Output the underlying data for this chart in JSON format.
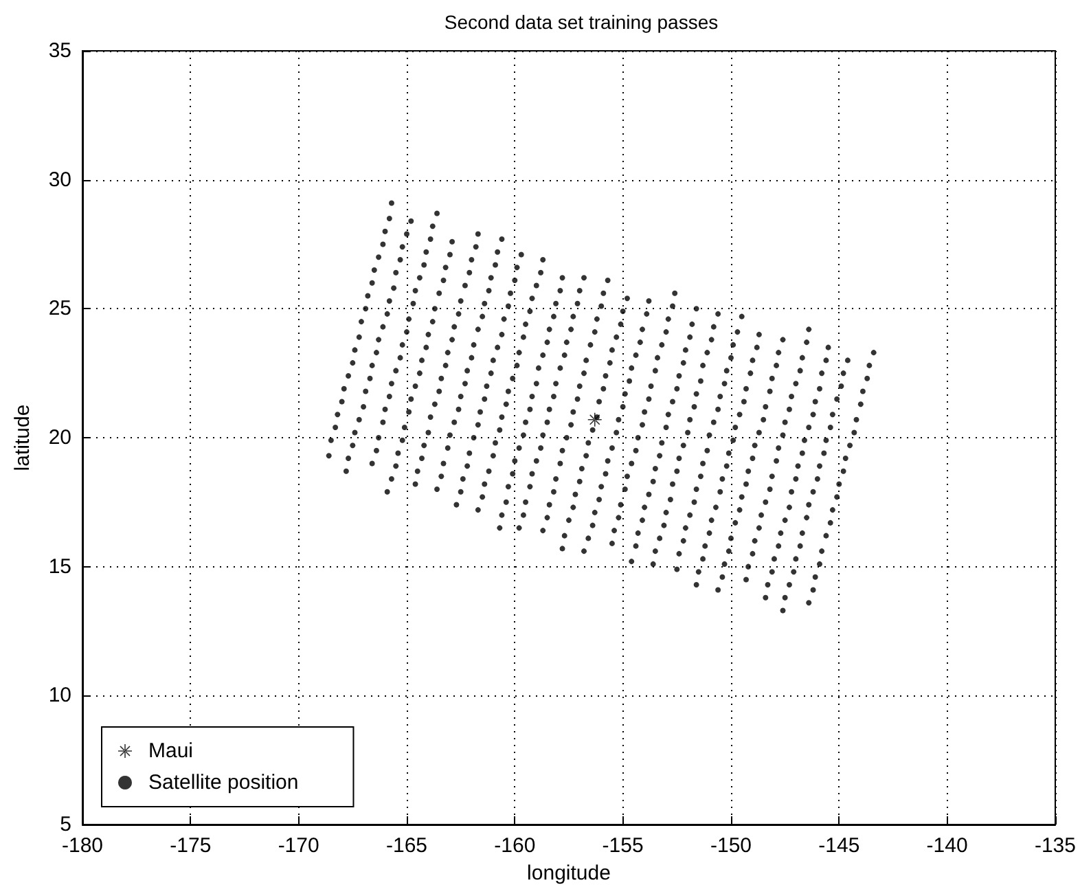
{
  "chart_data": {
    "type": "scatter",
    "title": "Second data set training passes",
    "xlabel": "longitude",
    "ylabel": "latitude",
    "xlim": [
      -180,
      -135
    ],
    "xticks": [
      -180,
      -175,
      -170,
      -165,
      -160,
      -155,
      -150,
      -145,
      -140,
      -135
    ],
    "ylim": [
      5,
      35
    ],
    "yticks": [
      5,
      10,
      15,
      20,
      25,
      30,
      35
    ],
    "grid": true,
    "legend": "bottom left",
    "series": [
      {
        "name": "Maui",
        "color": "#000000",
        "marker": "star",
        "x": [
          -156.3
        ],
        "values": [
          20.7
        ]
      },
      {
        "name": "Satellite position",
        "color": "#000000",
        "marker": "circle",
        "x": [
          -165.7,
          -165.8,
          -166.0,
          -166.1,
          -166.3,
          -166.5,
          -166.6,
          -166.8,
          -166.9,
          -167.1,
          -167.2,
          -167.4,
          -167.5,
          -167.7,
          -167.9,
          -168.0,
          -168.2,
          -168.3,
          -168.5,
          -168.6,
          -164.8,
          -165.0,
          -165.2,
          -165.3,
          -165.5,
          -165.6,
          -165.8,
          -165.9,
          -166.1,
          -166.3,
          -166.4,
          -166.6,
          -166.7,
          -166.9,
          -167.0,
          -167.2,
          -167.4,
          -167.5,
          -167.7,
          -167.8,
          -163.6,
          -163.8,
          -163.9,
          -164.1,
          -164.2,
          -164.4,
          -164.6,
          -164.7,
          -164.9,
          -165.0,
          -165.2,
          -165.3,
          -165.5,
          -165.7,
          -165.8,
          -166.0,
          -166.1,
          -166.3,
          -166.4,
          -166.6,
          -162.9,
          -163.0,
          -163.2,
          -163.3,
          -163.5,
          -163.7,
          -163.8,
          -164.0,
          -164.1,
          -164.3,
          -164.4,
          -164.6,
          -164.8,
          -164.9,
          -165.1,
          -165.2,
          -165.4,
          -165.5,
          -165.7,
          -165.9,
          -161.7,
          -161.8,
          -162.0,
          -162.1,
          -162.3,
          -162.5,
          -162.6,
          -162.8,
          -162.9,
          -163.1,
          -163.2,
          -163.4,
          -163.5,
          -163.7,
          -163.9,
          -164.0,
          -164.2,
          -164.3,
          -164.5,
          -164.6,
          -160.6,
          -160.8,
          -160.9,
          -161.1,
          -161.2,
          -161.4,
          -161.5,
          -161.7,
          -161.9,
          -162.0,
          -162.2,
          -162.3,
          -162.5,
          -162.6,
          -162.8,
          -163.0,
          -163.1,
          -163.3,
          -163.4,
          -163.6,
          -159.7,
          -159.9,
          -160.0,
          -160.2,
          -160.3,
          -160.5,
          -160.6,
          -160.8,
          -161.0,
          -161.1,
          -161.3,
          -161.4,
          -161.6,
          -161.7,
          -161.9,
          -162.1,
          -162.2,
          -162.4,
          -162.5,
          -162.7,
          -158.7,
          -158.8,
          -159.0,
          -159.2,
          -159.3,
          -159.5,
          -159.6,
          -159.8,
          -159.9,
          -160.1,
          -160.3,
          -160.4,
          -160.6,
          -160.7,
          -160.9,
          -161.0,
          -161.2,
          -161.4,
          -161.5,
          -161.7,
          -157.8,
          -157.9,
          -158.1,
          -158.2,
          -158.4,
          -158.5,
          -158.7,
          -158.9,
          -159.0,
          -159.2,
          -159.3,
          -159.5,
          -159.6,
          -159.8,
          -160.0,
          -160.1,
          -160.3,
          -160.4,
          -160.6,
          -160.7,
          -156.8,
          -157.0,
          -157.1,
          -157.3,
          -157.4,
          -157.6,
          -157.7,
          -157.9,
          -158.1,
          -158.2,
          -158.4,
          -158.5,
          -158.7,
          -158.8,
          -159.0,
          -159.2,
          -159.3,
          -159.5,
          -159.6,
          -159.8,
          -155.7,
          -155.9,
          -156.0,
          -156.2,
          -156.3,
          -156.5,
          -156.7,
          -156.8,
          -157.0,
          -157.1,
          -157.3,
          -157.4,
          -157.6,
          -157.8,
          -157.9,
          -158.1,
          -158.2,
          -158.4,
          -158.5,
          -158.7,
          -154.8,
          -155.0,
          -155.1,
          -155.3,
          -155.5,
          -155.6,
          -155.8,
          -155.9,
          -156.1,
          -156.2,
          -156.4,
          -156.6,
          -156.7,
          -156.9,
          -157.0,
          -157.2,
          -157.3,
          -157.5,
          -157.7,
          -157.8,
          -153.8,
          -153.9,
          -154.1,
          -154.2,
          -154.4,
          -154.6,
          -154.7,
          -154.9,
          -155.0,
          -155.2,
          -155.3,
          -155.5,
          -155.7,
          -155.8,
          -156.0,
          -156.1,
          -156.3,
          -156.4,
          -156.6,
          -156.8,
          -152.6,
          -152.7,
          -152.9,
          -153.0,
          -153.2,
          -153.4,
          -153.5,
          -153.7,
          -153.8,
          -154.0,
          -154.1,
          -154.3,
          -154.4,
          -154.6,
          -154.8,
          -154.9,
          -155.1,
          -155.2,
          -155.4,
          -155.5,
          -151.6,
          -151.8,
          -151.9,
          -152.1,
          -152.2,
          -152.4,
          -152.5,
          -152.7,
          -152.9,
          -153.0,
          -153.2,
          -153.3,
          -153.5,
          -153.6,
          -153.8,
          -154.0,
          -154.1,
          -154.3,
          -154.4,
          -154.6,
          -150.6,
          -150.8,
          -150.9,
          -151.1,
          -151.3,
          -151.4,
          -151.6,
          -151.7,
          -151.9,
          -152.0,
          -152.2,
          -152.4,
          -152.5,
          -152.7,
          -152.8,
          -153.0,
          -153.1,
          -153.3,
          -153.5,
          -153.6,
          -149.5,
          -149.7,
          -149.9,
          -150.0,
          -150.2,
          -150.3,
          -150.5,
          -150.6,
          -150.8,
          -151.0,
          -151.1,
          -151.3,
          -151.4,
          -151.6,
          -151.7,
          -151.9,
          -152.1,
          -152.2,
          -152.4,
          -152.5,
          -148.7,
          -148.8,
          -149.0,
          -149.1,
          -149.3,
          -149.4,
          -149.6,
          -149.8,
          -149.9,
          -150.1,
          -150.2,
          -150.4,
          -150.5,
          -150.7,
          -150.9,
          -151.0,
          -151.2,
          -151.3,
          -151.5,
          -151.6,
          -147.6,
          -147.8,
          -147.9,
          -148.1,
          -148.2,
          -148.4,
          -148.5,
          -148.7,
          -148.9,
          -149.0,
          -149.2,
          -149.3,
          -149.5,
          -149.6,
          -149.8,
          -150.0,
          -150.1,
          -150.3,
          -150.4,
          -150.6,
          -146.4,
          -146.5,
          -146.7,
          -146.8,
          -147.0,
          -147.2,
          -147.3,
          -147.5,
          -147.6,
          -147.8,
          -147.9,
          -148.1,
          -148.2,
          -148.4,
          -148.6,
          -148.7,
          -148.9,
          -149.0,
          -149.2,
          -149.3,
          -145.5,
          -145.6,
          -145.8,
          -145.9,
          -146.1,
          -146.2,
          -146.4,
          -146.6,
          -146.7,
          -146.9,
          -147.0,
          -147.2,
          -147.3,
          -147.5,
          -147.7,
          -147.8,
          -148.0,
          -148.1,
          -148.3,
          -148.4,
          -144.6,
          -144.8,
          -144.9,
          -145.1,
          -145.3,
          -145.4,
          -145.6,
          -145.7,
          -145.9,
          -146.0,
          -146.2,
          -146.4,
          -146.5,
          -146.7,
          -146.8,
          -147.0,
          -147.1,
          -147.3,
          -147.5,
          -147.6,
          -143.4,
          -143.6,
          -143.7,
          -143.9,
          -144.0,
          -144.2,
          -144.3,
          -144.5,
          -144.7,
          -144.8,
          -145.0,
          -145.1,
          -145.3,
          -145.4,
          -145.6,
          -145.8,
          -145.9,
          -146.1,
          -146.2,
          -146.4
        ],
        "values": [
          29.1,
          28.5,
          28.0,
          27.5,
          27.0,
          26.5,
          26.0,
          25.5,
          25.0,
          24.5,
          23.9,
          23.4,
          22.9,
          22.4,
          21.9,
          21.4,
          20.9,
          20.4,
          19.9,
          19.3,
          28.4,
          27.9,
          27.4,
          26.9,
          26.4,
          25.8,
          25.3,
          24.8,
          24.3,
          23.8,
          23.3,
          22.8,
          22.3,
          21.8,
          21.2,
          20.7,
          20.2,
          19.7,
          19.2,
          18.7,
          28.7,
          28.2,
          27.7,
          27.2,
          26.7,
          26.2,
          25.7,
          25.2,
          24.6,
          24.1,
          23.6,
          23.1,
          22.6,
          22.1,
          21.6,
          21.1,
          20.6,
          20.0,
          19.5,
          19.0,
          27.6,
          27.1,
          26.6,
          26.1,
          25.6,
          25.0,
          24.5,
          24.0,
          23.5,
          23.0,
          22.5,
          22.0,
          21.5,
          21.0,
          20.4,
          19.9,
          19.4,
          18.9,
          18.4,
          17.9,
          27.9,
          27.4,
          26.9,
          26.4,
          25.9,
          25.3,
          24.8,
          24.3,
          23.8,
          23.3,
          22.8,
          22.3,
          21.8,
          21.3,
          20.8,
          20.2,
          19.7,
          19.2,
          18.7,
          18.2,
          27.7,
          27.2,
          26.7,
          26.2,
          25.7,
          25.2,
          24.7,
          24.2,
          23.6,
          23.1,
          22.6,
          22.1,
          21.6,
          21.1,
          20.6,
          20.1,
          19.6,
          19.0,
          18.5,
          18.0,
          27.1,
          26.6,
          26.1,
          25.6,
          25.1,
          24.6,
          24.0,
          23.5,
          23.0,
          22.5,
          22.0,
          21.5,
          21.0,
          20.5,
          20.0,
          19.4,
          18.9,
          18.4,
          17.9,
          17.4,
          26.9,
          26.4,
          25.9,
          25.4,
          24.9,
          24.4,
          23.9,
          23.3,
          22.8,
          22.3,
          21.8,
          21.3,
          20.8,
          20.3,
          19.8,
          19.3,
          18.7,
          18.2,
          17.7,
          17.2,
          26.2,
          25.7,
          25.2,
          24.7,
          24.2,
          23.7,
          23.2,
          22.7,
          22.1,
          21.6,
          21.1,
          20.6,
          20.1,
          19.6,
          19.1,
          18.6,
          18.1,
          17.5,
          17.0,
          16.5,
          26.2,
          25.7,
          25.2,
          24.7,
          24.2,
          23.7,
          23.2,
          22.7,
          22.1,
          21.6,
          21.1,
          20.6,
          20.1,
          19.6,
          19.1,
          18.6,
          18.1,
          17.5,
          17.0,
          16.5,
          26.1,
          25.6,
          25.1,
          24.6,
          24.1,
          23.6,
          23.0,
          22.5,
          22.0,
          21.5,
          21.0,
          20.5,
          20.0,
          19.5,
          19.0,
          18.4,
          17.9,
          17.4,
          16.9,
          16.4,
          25.4,
          24.9,
          24.4,
          23.9,
          23.4,
          22.9,
          22.4,
          21.9,
          21.4,
          20.8,
          20.3,
          19.8,
          19.3,
          18.8,
          18.3,
          17.8,
          17.3,
          16.8,
          16.2,
          15.7,
          25.3,
          24.8,
          24.2,
          23.7,
          23.2,
          22.7,
          22.2,
          21.7,
          21.2,
          20.7,
          20.2,
          19.6,
          19.1,
          18.6,
          18.1,
          17.6,
          17.1,
          16.6,
          16.1,
          15.6,
          25.6,
          25.1,
          24.6,
          24.1,
          23.6,
          23.1,
          22.6,
          22.0,
          21.5,
          21.0,
          20.5,
          20.0,
          19.5,
          19.0,
          18.5,
          18.0,
          17.4,
          16.9,
          16.4,
          15.9,
          25.0,
          24.4,
          23.9,
          23.4,
          22.9,
          22.4,
          21.9,
          21.4,
          20.9,
          20.4,
          19.8,
          19.3,
          18.8,
          18.3,
          17.8,
          17.3,
          16.8,
          16.3,
          15.8,
          15.2,
          24.8,
          24.3,
          23.8,
          23.3,
          22.8,
          22.2,
          21.7,
          21.2,
          20.7,
          20.2,
          19.7,
          19.2,
          18.7,
          18.2,
          17.6,
          17.1,
          16.6,
          16.1,
          15.6,
          15.1,
          24.7,
          24.1,
          23.6,
          23.1,
          22.6,
          22.1,
          21.6,
          21.1,
          20.6,
          20.1,
          19.5,
          19.0,
          18.5,
          18.0,
          17.5,
          17.0,
          16.5,
          16.0,
          15.5,
          14.9,
          24.0,
          23.5,
          23.0,
          22.5,
          21.9,
          21.4,
          20.9,
          20.4,
          19.9,
          19.4,
          18.9,
          18.4,
          17.9,
          17.3,
          16.8,
          16.3,
          15.8,
          15.3,
          14.8,
          14.3,
          23.8,
          23.3,
          22.8,
          22.3,
          21.8,
          21.2,
          20.7,
          20.2,
          19.7,
          19.2,
          18.7,
          18.2,
          17.7,
          17.2,
          16.7,
          16.1,
          15.6,
          15.1,
          14.6,
          14.1,
          24.2,
          23.7,
          23.1,
          22.6,
          22.1,
          21.6,
          21.1,
          20.6,
          20.1,
          19.6,
          19.1,
          18.5,
          18.0,
          17.5,
          17.0,
          16.5,
          16.0,
          15.5,
          15.0,
          14.5,
          23.5,
          23.0,
          22.5,
          21.9,
          21.4,
          20.9,
          20.4,
          19.9,
          19.4,
          18.9,
          18.4,
          17.9,
          17.3,
          16.8,
          16.3,
          15.8,
          15.3,
          14.8,
          14.3,
          13.8,
          23.0,
          22.5,
          22.0,
          21.5,
          20.9,
          20.4,
          19.9,
          19.4,
          18.9,
          18.4,
          17.9,
          17.4,
          16.9,
          16.3,
          15.8,
          15.3,
          14.8,
          14.3,
          13.8,
          13.3,
          23.3,
          22.8,
          22.3,
          21.8,
          21.3,
          20.7,
          20.2,
          19.7,
          19.2,
          18.7,
          18.2,
          17.7,
          17.2,
          16.7,
          16.2,
          15.6,
          15.1,
          14.6,
          14.1,
          13.6
        ]
      }
    ]
  }
}
